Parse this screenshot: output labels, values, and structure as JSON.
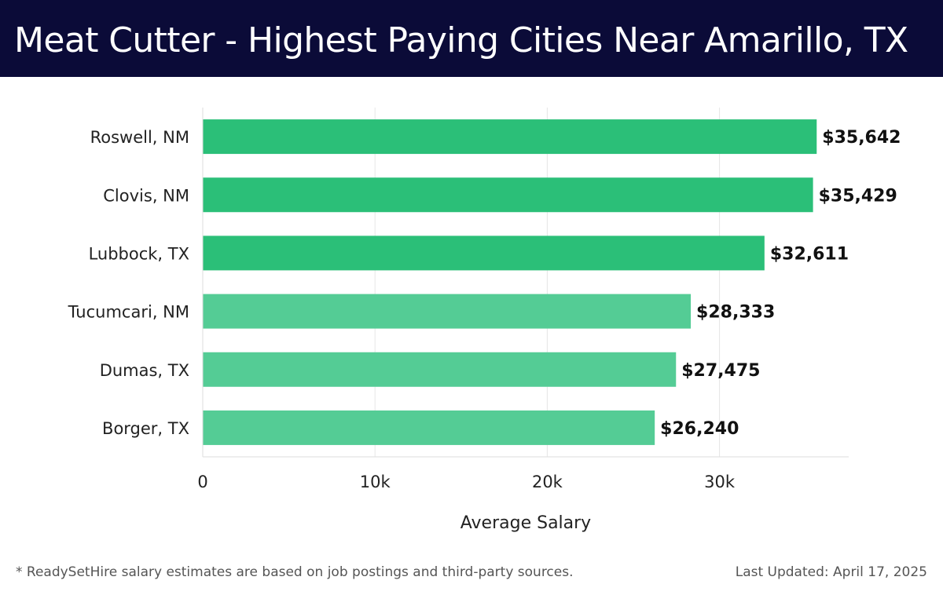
{
  "header": {
    "title": "Meat Cutter - Highest Paying Cities Near Amarillo, TX"
  },
  "footer": {
    "note": "* ReadySetHire salary estimates are based on job postings and third-party sources.",
    "updated": "Last Updated: April 17, 2025"
  },
  "chart_data": {
    "type": "bar",
    "orientation": "horizontal",
    "title": "Meat Cutter - Highest Paying Cities Near Amarillo, TX",
    "categories": [
      "Roswell, NM",
      "Clovis, NM",
      "Lubbock, TX",
      "Tucumcari, NM",
      "Dumas, TX",
      "Borger, TX"
    ],
    "values": [
      35642,
      35429,
      32611,
      28333,
      27475,
      26240
    ],
    "value_labels": [
      "$35,642",
      "$35,429",
      "$32,611",
      "$28,333",
      "$27,475",
      "$26,240"
    ],
    "xlabel": "Average Salary",
    "ylabel": "",
    "xlim": [
      0,
      37500
    ],
    "xticks": [
      0,
      10000,
      20000,
      30000
    ],
    "xtick_labels": [
      "0",
      "10k",
      "20k",
      "30k"
    ],
    "grid": true,
    "colors": {
      "top_bars": "#2bbf78",
      "other_bars": "#54cc95",
      "header_bg": "#0b0b38"
    }
  }
}
